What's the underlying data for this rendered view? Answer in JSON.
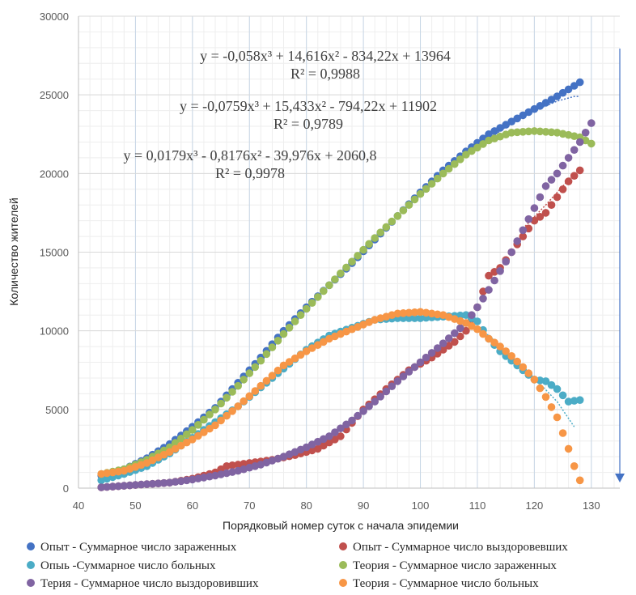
{
  "chart_data": {
    "type": "scatter",
    "xlabel": "Порядковый номер суток с начала эпидемии",
    "ylabel": "Количество жителей",
    "xlim": [
      40,
      135
    ],
    "ylim": [
      0,
      30000
    ],
    "x_ticks": [
      40,
      50,
      60,
      70,
      80,
      90,
      100,
      110,
      120,
      130
    ],
    "y_ticks": [
      0,
      5000,
      10000,
      15000,
      20000,
      25000,
      30000
    ],
    "x_tick_labels": [
      "40",
      "50",
      "60",
      "70",
      "80",
      "90",
      "100",
      "110",
      "120",
      "130"
    ],
    "y_tick_labels": [
      "0",
      "5000",
      "10000",
      "15000",
      "20000",
      "25000",
      "30000"
    ],
    "grid": true,
    "legend_position": "bottom",
    "equations": [
      {
        "line1": "y = -0,058x³ + 14,616x² - 834,22x + 13964",
        "line2": "R² = 0,9988"
      },
      {
        "line1": "y = -0,0759x³ + 15,433x² - 794,22x + 11902",
        "line2": "R² = 0,9789"
      },
      {
        "line1": "y = 0,0179x³ - 0,8176x² - 39,976x + 2060,8",
        "line2": "R² = 0,9978"
      }
    ],
    "series": [
      {
        "name": "Опыт - Суммарное число зараженных",
        "color": "#4472c4",
        "x_range": [
          44,
          128
        ],
        "anchors": [
          [
            44,
            800
          ],
          [
            48,
            1200
          ],
          [
            52,
            1900
          ],
          [
            56,
            2800
          ],
          [
            60,
            3900
          ],
          [
            64,
            5100
          ],
          [
            68,
            6700
          ],
          [
            72,
            8300
          ],
          [
            76,
            10000
          ],
          [
            80,
            11500
          ],
          [
            84,
            12900
          ],
          [
            88,
            14300
          ],
          [
            92,
            15800
          ],
          [
            96,
            17300
          ],
          [
            100,
            18800
          ],
          [
            104,
            20200
          ],
          [
            108,
            21400
          ],
          [
            112,
            22500
          ],
          [
            116,
            23300
          ],
          [
            120,
            24100
          ],
          [
            124,
            24900
          ],
          [
            128,
            25800
          ]
        ]
      },
      {
        "name": "Опыт - Суммарное число выздоровевших",
        "color": "#c0504d",
        "x_range": [
          44,
          128
        ],
        "anchors": [
          [
            44,
            50
          ],
          [
            50,
            200
          ],
          [
            56,
            350
          ],
          [
            60,
            600
          ],
          [
            64,
            1000
          ],
          [
            66,
            1400
          ],
          [
            70,
            1600
          ],
          [
            74,
            1800
          ],
          [
            78,
            2100
          ],
          [
            82,
            2500
          ],
          [
            86,
            3300
          ],
          [
            90,
            5000
          ],
          [
            94,
            6300
          ],
          [
            98,
            7500
          ],
          [
            102,
            8300
          ],
          [
            106,
            9300
          ],
          [
            108,
            10000
          ],
          [
            110,
            11500
          ],
          [
            112,
            13500
          ],
          [
            114,
            14000
          ],
          [
            116,
            15000
          ],
          [
            118,
            16000
          ],
          [
            120,
            17000
          ],
          [
            122,
            17500
          ],
          [
            124,
            18500
          ],
          [
            126,
            19500
          ],
          [
            128,
            20200
          ]
        ]
      },
      {
        "name": "Опыь -Суммарное число больных",
        "color": "#4bacc6",
        "x_range": [
          44,
          128
        ],
        "anchors": [
          [
            44,
            500
          ],
          [
            48,
            900
          ],
          [
            52,
            1400
          ],
          [
            56,
            2200
          ],
          [
            60,
            3200
          ],
          [
            64,
            4200
          ],
          [
            68,
            5200
          ],
          [
            72,
            6400
          ],
          [
            76,
            7600
          ],
          [
            80,
            8800
          ],
          [
            84,
            9700
          ],
          [
            88,
            10200
          ],
          [
            92,
            10700
          ],
          [
            96,
            10800
          ],
          [
            100,
            10800
          ],
          [
            104,
            10900
          ],
          [
            108,
            11000
          ],
          [
            110,
            10600
          ],
          [
            112,
            9500
          ],
          [
            114,
            8700
          ],
          [
            116,
            8100
          ],
          [
            118,
            7500
          ],
          [
            120,
            6900
          ],
          [
            122,
            6800
          ],
          [
            124,
            6300
          ],
          [
            126,
            5500
          ],
          [
            128,
            5600
          ]
        ]
      },
      {
        "name": "Теория - Суммарное число зараженных",
        "color": "#9bbb59",
        "x_range": [
          44,
          130
        ],
        "anchors": [
          [
            44,
            900
          ],
          [
            48,
            1200
          ],
          [
            52,
            1800
          ],
          [
            56,
            2600
          ],
          [
            60,
            3700
          ],
          [
            64,
            5000
          ],
          [
            68,
            6500
          ],
          [
            72,
            8100
          ],
          [
            76,
            9800
          ],
          [
            80,
            11400
          ],
          [
            84,
            12900
          ],
          [
            88,
            14400
          ],
          [
            92,
            15900
          ],
          [
            96,
            17300
          ],
          [
            100,
            18700
          ],
          [
            104,
            20000
          ],
          [
            108,
            21200
          ],
          [
            112,
            22100
          ],
          [
            116,
            22600
          ],
          [
            120,
            22700
          ],
          [
            124,
            22600
          ],
          [
            128,
            22300
          ],
          [
            130,
            21900
          ]
        ]
      },
      {
        "name": "Терия - Суммарное число выздоровивших",
        "color": "#8064a2",
        "x_range": [
          44,
          130
        ],
        "anchors": [
          [
            44,
            50
          ],
          [
            50,
            200
          ],
          [
            56,
            350
          ],
          [
            60,
            550
          ],
          [
            64,
            800
          ],
          [
            68,
            1100
          ],
          [
            72,
            1500
          ],
          [
            76,
            2000
          ],
          [
            80,
            2600
          ],
          [
            84,
            3300
          ],
          [
            88,
            4300
          ],
          [
            92,
            5500
          ],
          [
            96,
            6800
          ],
          [
            100,
            8000
          ],
          [
            104,
            9200
          ],
          [
            108,
            10500
          ],
          [
            110,
            11500
          ],
          [
            112,
            12600
          ],
          [
            114,
            13800
          ],
          [
            116,
            15000
          ],
          [
            118,
            16400
          ],
          [
            120,
            17800
          ],
          [
            122,
            19200
          ],
          [
            124,
            20000
          ],
          [
            126,
            21000
          ],
          [
            128,
            22000
          ],
          [
            130,
            23200
          ]
        ]
      },
      {
        "name": "Теория - Суммарное число больных",
        "color": "#f79646",
        "x_range": [
          44,
          128
        ],
        "anchors": [
          [
            44,
            900
          ],
          [
            48,
            1100
          ],
          [
            52,
            1600
          ],
          [
            56,
            2300
          ],
          [
            60,
            3100
          ],
          [
            64,
            4000
          ],
          [
            68,
            5200
          ],
          [
            72,
            6500
          ],
          [
            76,
            7800
          ],
          [
            80,
            8700
          ],
          [
            84,
            9500
          ],
          [
            88,
            10100
          ],
          [
            92,
            10700
          ],
          [
            96,
            11100
          ],
          [
            100,
            11200
          ],
          [
            104,
            11000
          ],
          [
            108,
            10500
          ],
          [
            110,
            10100
          ],
          [
            112,
            9500
          ],
          [
            114,
            9000
          ],
          [
            116,
            8400
          ],
          [
            118,
            7700
          ],
          [
            120,
            6900
          ],
          [
            122,
            5800
          ],
          [
            124,
            4500
          ],
          [
            126,
            2500
          ],
          [
            127,
            1400
          ],
          [
            128,
            500
          ]
        ]
      }
    ],
    "trendlines": [
      {
        "color": "#4472c4",
        "x_range": [
          108,
          128
        ],
        "anchors": [
          [
            108,
            21200
          ],
          [
            112,
            22200
          ],
          [
            116,
            23200
          ],
          [
            120,
            24000
          ],
          [
            124,
            24600
          ],
          [
            127,
            24900
          ]
        ]
      },
      {
        "color": "#4bacc6",
        "x_range": [
          100,
          127
        ],
        "anchors": [
          [
            100,
            11000
          ],
          [
            104,
            11000
          ],
          [
            108,
            10600
          ],
          [
            112,
            9700
          ],
          [
            116,
            8400
          ],
          [
            120,
            7000
          ],
          [
            124,
            5500
          ],
          [
            127,
            3900
          ]
        ]
      },
      {
        "color": "#c0504d",
        "x_range": [
          118,
          128
        ],
        "anchors": [
          [
            118,
            16500
          ],
          [
            122,
            18000
          ],
          [
            126,
            19600
          ],
          [
            128,
            20300
          ]
        ]
      }
    ]
  }
}
